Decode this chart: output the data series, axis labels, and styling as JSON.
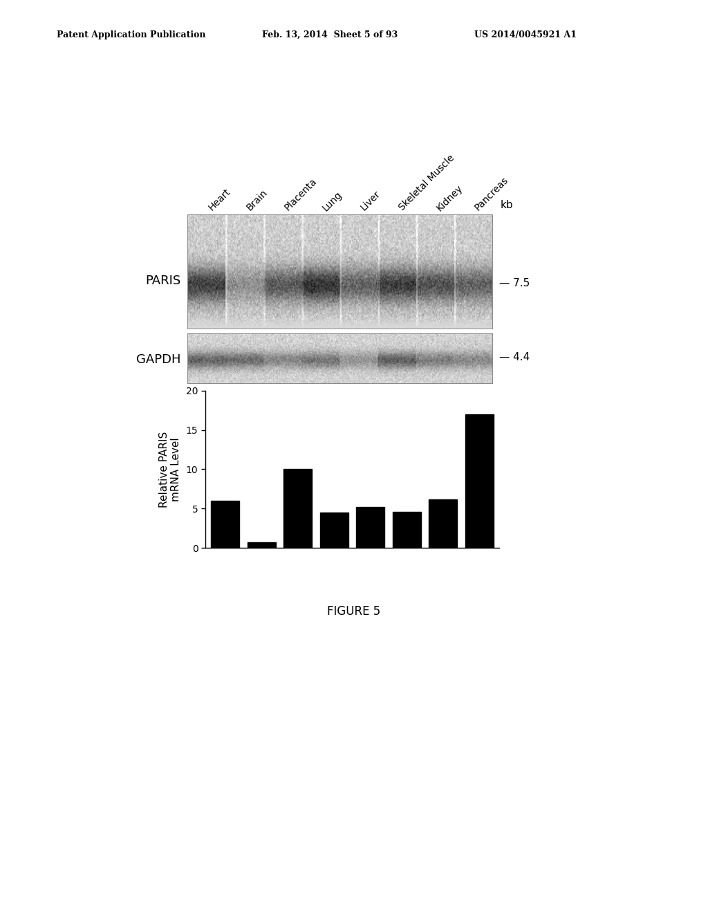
{
  "header_left": "Patent Application Publication",
  "header_mid": "Feb. 13, 2014  Sheet 5 of 93",
  "header_right": "US 2014/0045921 A1",
  "figure_caption": "FIGURE 5",
  "categories": [
    "Heart",
    "Brain",
    "Placenta",
    "Lung",
    "Liver",
    "Skeletal Muscle",
    "Kidney",
    "Pancreas"
  ],
  "bar_values": [
    6.0,
    0.7,
    10.0,
    4.5,
    5.2,
    4.6,
    6.2,
    17.0
  ],
  "bar_color": "#000000",
  "ylabel_line1": "Relative PARIS",
  "ylabel_line2": "mRNA Level",
  "ylim": [
    0,
    20
  ],
  "yticks": [
    0,
    5,
    10,
    15,
    20
  ],
  "paris_label": "PARIS",
  "gapdh_label": "GAPDH",
  "kb_label": "kb",
  "paris_marker": "7.5",
  "gapdh_marker": "4.4",
  "background_color": "#ffffff"
}
